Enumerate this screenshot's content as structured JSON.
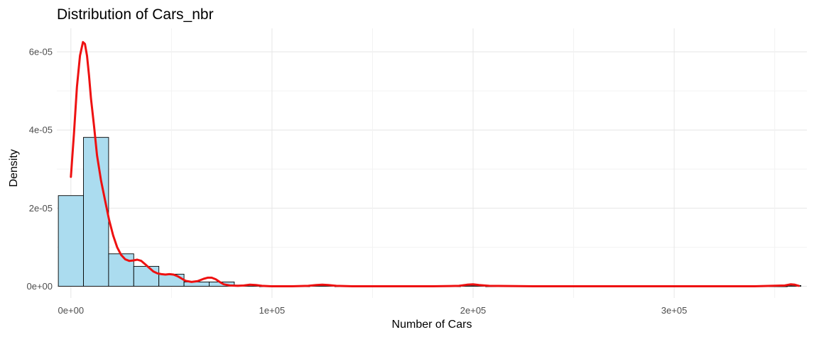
{
  "chart_data": {
    "type": "histogram",
    "title": "Distribution of Cars_nbr",
    "xlabel": "Number of Cars",
    "ylabel": "Density",
    "xlim": [
      -7000,
      366000
    ],
    "ylim": [
      -3e-06,
      6.6e-05
    ],
    "x_ticks": [
      {
        "value": 0,
        "label": "0e+00"
      },
      {
        "value": 100000,
        "label": "1e+05"
      },
      {
        "value": 200000,
        "label": "2e+05"
      },
      {
        "value": 300000,
        "label": "3e+05"
      }
    ],
    "y_ticks": [
      {
        "value": 0,
        "label": "0e+00"
      },
      {
        "value": 2e-05,
        "label": "2e-05"
      },
      {
        "value": 4e-05,
        "label": "4e-05"
      },
      {
        "value": 6e-05,
        "label": "6e-05"
      }
    ],
    "grid": true,
    "bin_width": 12500,
    "bars": [
      {
        "x0": -6250,
        "x1": 6250,
        "density": 2.32e-05
      },
      {
        "x0": 6250,
        "x1": 18750,
        "density": 3.81e-05
      },
      {
        "x0": 18750,
        "x1": 31250,
        "density": 8.3e-06
      },
      {
        "x0": 31250,
        "x1": 43750,
        "density": 5.1e-06
      },
      {
        "x0": 43750,
        "x1": 56250,
        "density": 3.1e-06
      },
      {
        "x0": 56250,
        "x1": 68750,
        "density": 1.1e-06
      },
      {
        "x0": 68750,
        "x1": 81250,
        "density": 1.1e-06
      },
      {
        "x0": 81250,
        "x1": 93750,
        "density": 3e-07
      },
      {
        "x0": 93750,
        "x1": 106250,
        "density": 0.0
      },
      {
        "x0": 106250,
        "x1": 118750,
        "density": 0.0
      },
      {
        "x0": 118750,
        "x1": 131250,
        "density": 2e-07
      },
      {
        "x0": 131250,
        "x1": 143750,
        "density": 0.0
      },
      {
        "x0": 143750,
        "x1": 156250,
        "density": 0.0
      },
      {
        "x0": 156250,
        "x1": 168750,
        "density": 0.0
      },
      {
        "x0": 168750,
        "x1": 181250,
        "density": 0.0
      },
      {
        "x0": 181250,
        "x1": 193750,
        "density": 0.0
      },
      {
        "x0": 193750,
        "x1": 206250,
        "density": 2e-07
      },
      {
        "x0": 206250,
        "x1": 218750,
        "density": 0.0
      },
      {
        "x0": 218750,
        "x1": 231250,
        "density": 0.0
      },
      {
        "x0": 231250,
        "x1": 243750,
        "density": 0.0
      },
      {
        "x0": 243750,
        "x1": 256250,
        "density": 0.0
      },
      {
        "x0": 256250,
        "x1": 268750,
        "density": 0.0
      },
      {
        "x0": 268750,
        "x1": 281250,
        "density": 0.0
      },
      {
        "x0": 281250,
        "x1": 293750,
        "density": 0.0
      },
      {
        "x0": 293750,
        "x1": 306250,
        "density": 0.0
      },
      {
        "x0": 306250,
        "x1": 318750,
        "density": 0.0
      },
      {
        "x0": 318750,
        "x1": 331250,
        "density": 0.0
      },
      {
        "x0": 331250,
        "x1": 343750,
        "density": 0.0
      },
      {
        "x0": 343750,
        "x1": 356250,
        "density": 0.0
      },
      {
        "x0": 356250,
        "x1": 363000,
        "density": 2e-07
      }
    ],
    "density_curve": {
      "x": [
        0,
        1500,
        3000,
        4500,
        6000,
        7000,
        8000,
        9000,
        10000,
        11500,
        13000,
        15000,
        17000,
        19000,
        21000,
        23000,
        25000,
        27000,
        29000,
        31000,
        33000,
        35000,
        37000,
        39000,
        41000,
        43000,
        45000,
        47000,
        49000,
        51000,
        53000,
        55000,
        57000,
        60000,
        63000,
        66000,
        68000,
        70000,
        72000,
        74000,
        76000,
        79000,
        83000,
        86000,
        89000,
        92000,
        95000,
        100000,
        110000,
        118000,
        122000,
        125000,
        128000,
        132000,
        140000,
        160000,
        180000,
        193000,
        197000,
        200000,
        203000,
        208000,
        230000,
        260000,
        300000,
        340000,
        355000,
        358000,
        360000,
        362000
      ],
      "y": [
        2.8e-05,
        3.9e-05,
        5.1e-05,
        5.9e-05,
        6.25e-05,
        6.2e-05,
        5.9e-05,
        5.4e-05,
        4.8e-05,
        4.1e-05,
        3.35e-05,
        2.7e-05,
        2.2e-05,
        1.7e-05,
        1.3e-05,
        1e-05,
        8e-06,
        6.9e-06,
        6.5e-06,
        6.6e-06,
        6.8e-06,
        6.5e-06,
        5.6e-06,
        4.7e-06,
        3.8e-06,
        3.3e-06,
        3.1e-06,
        3e-06,
        3.1e-06,
        3e-06,
        2.6e-06,
        2e-06,
        1.4e-06,
        1.1e-06,
        1.3e-06,
        1.9e-06,
        2.2e-06,
        2.2e-06,
        1.8e-06,
        1.1e-06,
        5e-07,
        2e-07,
        1e-07,
        2e-07,
        4e-07,
        3e-07,
        1e-07,
        0.0,
        0.0,
        1e-07,
        3e-07,
        4e-07,
        3e-07,
        1e-07,
        0.0,
        0.0,
        0.0,
        1e-07,
        4e-07,
        5e-07,
        3e-07,
        1e-07,
        0.0,
        0.0,
        0.0,
        0.0,
        2e-07,
        5e-07,
        4e-07,
        1e-07
      ]
    },
    "colors": {
      "bar_fill": "#abdcef",
      "bar_stroke": "#000000",
      "curve": "#ee1111"
    }
  }
}
